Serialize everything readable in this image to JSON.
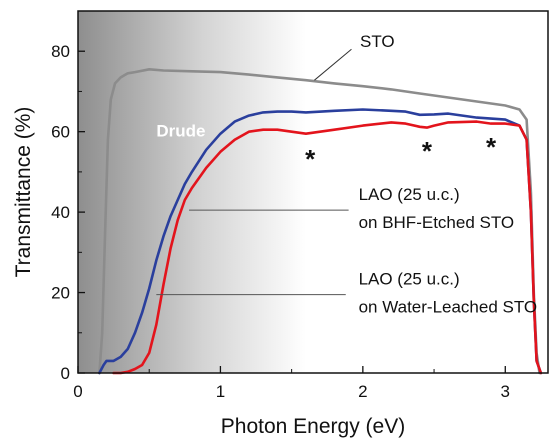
{
  "chart_data": {
    "type": "line",
    "title": "",
    "xlabel": "Photon Energy (eV)",
    "ylabel": "Transmittance (%)",
    "xlim": [
      0,
      3.3
    ],
    "ylim": [
      0,
      90
    ],
    "xticks": [
      0,
      1,
      2,
      3
    ],
    "yticks": [
      0,
      20,
      40,
      60,
      80
    ],
    "grid": false,
    "legend": "none",
    "shaded_region": {
      "label": "Drude",
      "x_from": 0,
      "x_to": 1.6
    },
    "series": [
      {
        "name": "STO",
        "color": "#8c8c8c",
        "x": [
          0.15,
          0.17,
          0.19,
          0.21,
          0.23,
          0.26,
          0.3,
          0.35,
          0.4,
          0.5,
          0.6,
          0.8,
          1.0,
          1.2,
          1.4,
          1.6,
          1.8,
          2.0,
          2.2,
          2.4,
          2.6,
          2.8,
          3.0,
          3.1,
          3.15,
          3.18,
          3.2,
          3.22,
          3.24
        ],
        "values": [
          0,
          10,
          35,
          58,
          68,
          72,
          73.5,
          74.5,
          74.8,
          75.5,
          75.2,
          75,
          74.8,
          74.2,
          73.5,
          72.8,
          72,
          71.3,
          70.5,
          69.5,
          68.5,
          67.5,
          66.5,
          65.5,
          63,
          45,
          20,
          5,
          0
        ]
      },
      {
        "name": "LAO (25 u.c.) on BHF-Etched STO",
        "color": "#2a3f9d",
        "x": [
          0.15,
          0.18,
          0.2,
          0.25,
          0.3,
          0.35,
          0.4,
          0.45,
          0.5,
          0.55,
          0.6,
          0.65,
          0.7,
          0.75,
          0.8,
          0.9,
          1.0,
          1.1,
          1.2,
          1.3,
          1.4,
          1.5,
          1.6,
          1.8,
          2.0,
          2.2,
          2.3,
          2.4,
          2.5,
          2.6,
          2.8,
          3.0,
          3.1,
          3.15,
          3.18,
          3.2,
          3.22,
          3.25
        ],
        "values": [
          0,
          2,
          3,
          3,
          4,
          6,
          10,
          15,
          21,
          28,
          34,
          39,
          43,
          47,
          50,
          55.5,
          59.5,
          62.5,
          64,
          64.8,
          65,
          65,
          64.8,
          65.2,
          65.5,
          65.2,
          65,
          64.2,
          64.3,
          64.5,
          63.5,
          63,
          61.5,
          58,
          40,
          18,
          3,
          0
        ]
      },
      {
        "name": "LAO (25 u.c.) on Water-Leached STO",
        "color": "#e3141c",
        "x": [
          0.25,
          0.3,
          0.35,
          0.4,
          0.45,
          0.5,
          0.55,
          0.6,
          0.65,
          0.7,
          0.75,
          0.8,
          0.9,
          1.0,
          1.1,
          1.2,
          1.3,
          1.4,
          1.5,
          1.6,
          1.7,
          1.8,
          2.0,
          2.2,
          2.3,
          2.4,
          2.45,
          2.5,
          2.6,
          2.8,
          2.9,
          3.0,
          3.1,
          3.15,
          3.18,
          3.2,
          3.22,
          3.25
        ],
        "values": [
          0,
          0,
          0.3,
          1,
          2,
          5,
          12,
          22,
          31,
          38,
          43,
          46,
          51,
          55,
          58,
          60,
          60.5,
          60.5,
          60,
          59.5,
          60,
          60.5,
          61.5,
          62.3,
          62,
          61.2,
          61,
          61.5,
          62.3,
          62.5,
          62,
          62,
          61.5,
          58,
          40,
          18,
          3,
          0
        ]
      }
    ],
    "annotations": {
      "sto_label": "STO",
      "drude_label": "Drude",
      "bhf_line1": "LAO (25 u.c.)",
      "bhf_line2": "on BHF-Etched STO",
      "water_line1": "LAO (25 u.c.)",
      "water_line2": "on Water-Leached STO",
      "star_symbol": "*",
      "star_positions": [
        {
          "x": 1.63,
          "y": 53
        },
        {
          "x": 2.45,
          "y": 55
        },
        {
          "x": 2.9,
          "y": 56
        }
      ]
    }
  }
}
